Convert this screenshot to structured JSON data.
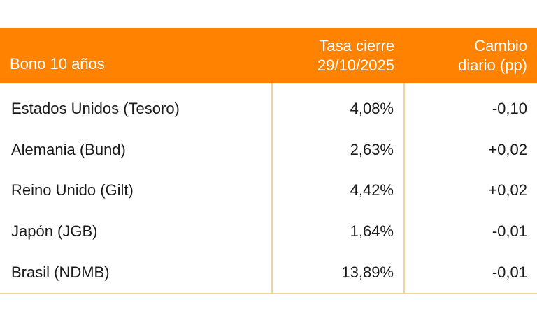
{
  "table": {
    "headers": {
      "name": "Bono 10 años",
      "rate_line1": "Tasa cierre",
      "rate_line2": "29/10/2025",
      "change_line1": "Cambio",
      "change_line2": "diario (pp)"
    },
    "accent_color": "#ff8200",
    "divider_color": "#f0d49a",
    "rows": [
      {
        "name": "Estados Unidos (Tesoro)",
        "rate": "4,08%",
        "change": "-0,10"
      },
      {
        "name": "Alemania (Bund)",
        "rate": "2,63%",
        "change": "+0,02"
      },
      {
        "name": "Reino Unido (Gilt)",
        "rate": "4,42%",
        "change": "+0,02"
      },
      {
        "name": "Japón (JGB)",
        "rate": "1,64%",
        "change": "-0,01"
      },
      {
        "name": "Brasil (NDMB)",
        "rate": "13,89%",
        "change": "-0,01"
      }
    ]
  }
}
